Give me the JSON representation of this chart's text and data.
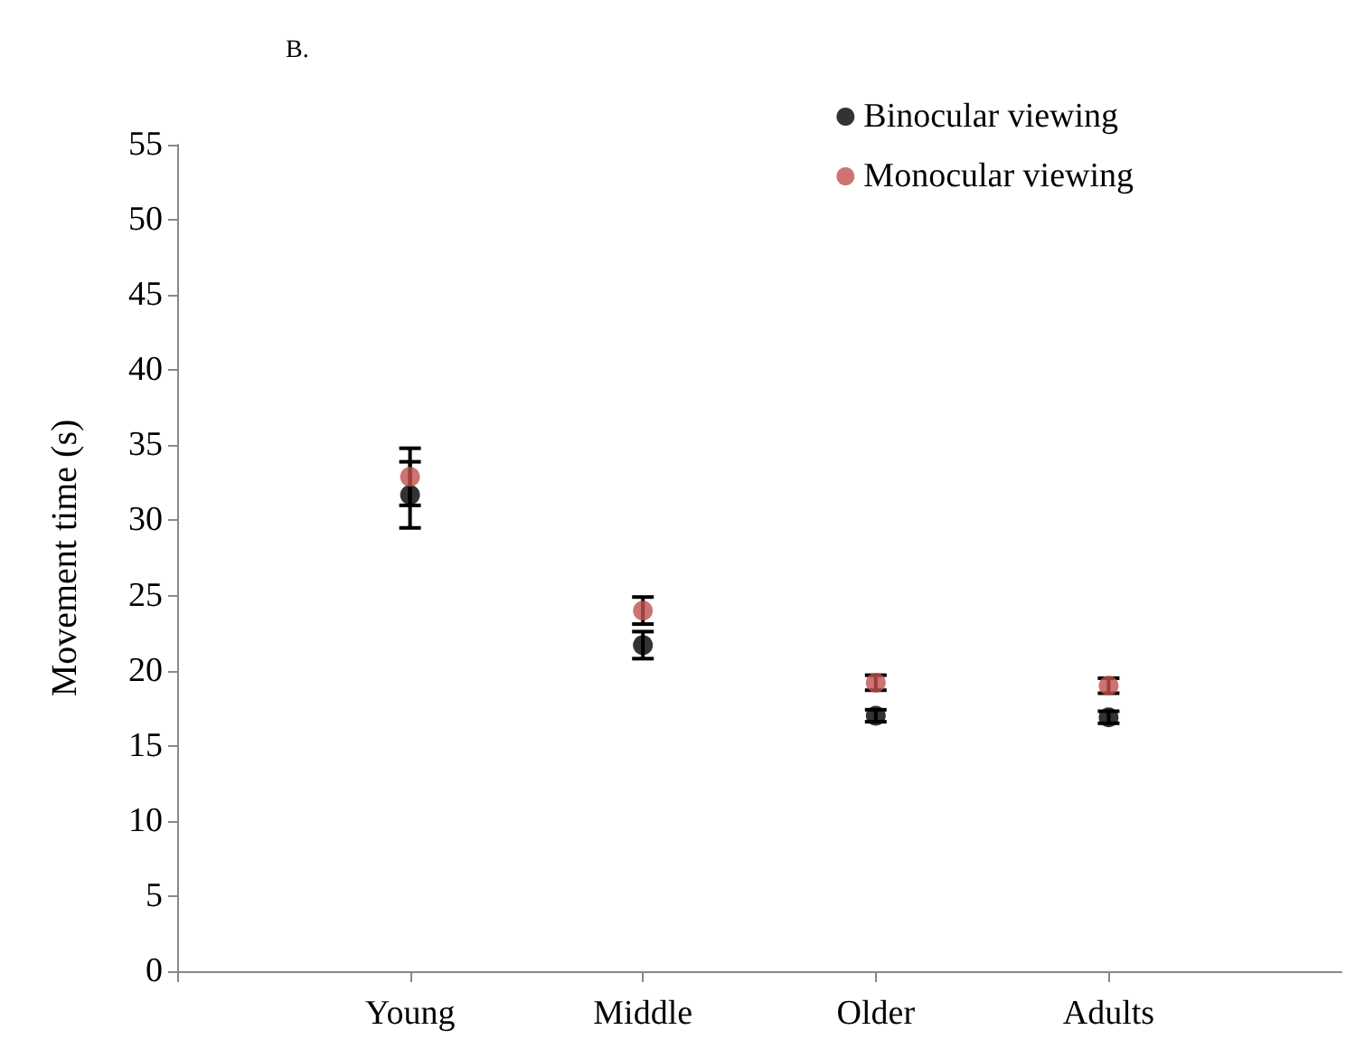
{
  "chart_data": {
    "type": "scatter",
    "title": "B.",
    "ylabel": "Movement time (s)",
    "categories": [
      "Young",
      "Middle",
      "Older",
      "Adults"
    ],
    "series": [
      {
        "name": "Binocular viewing",
        "color": "#000000",
        "values": [
          31.7,
          21.7,
          17.0,
          16.9
        ],
        "errors": [
          2.2,
          0.9,
          0.4,
          0.4
        ]
      },
      {
        "name": "Monocular viewing",
        "color": "#c0504d",
        "values": [
          32.9,
          24.0,
          19.2,
          19.0
        ],
        "errors": [
          1.9,
          0.9,
          0.5,
          0.5
        ]
      }
    ],
    "ylim": [
      0,
      55
    ],
    "yticks": [
      0,
      5,
      10,
      15,
      20,
      25,
      30,
      35,
      40,
      45,
      50,
      55
    ],
    "grid": false,
    "legend": "top right",
    "marker": "circle"
  }
}
